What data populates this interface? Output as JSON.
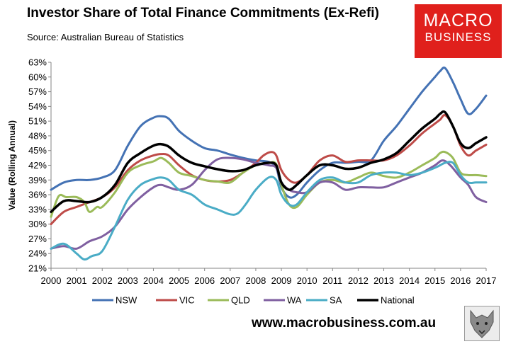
{
  "header": {
    "title": "Investor Share of Total Finance Commitments (Ex-Refi)",
    "source": "Source: Australian Bureau of Statistics"
  },
  "logo": {
    "line1": "MACRO",
    "line2": "BUSINESS"
  },
  "footer": {
    "website": "www.macrobusiness.com.au",
    "wolf_logo": "wolf-head-icon"
  },
  "chart_data": {
    "type": "line",
    "title": "Investor Share of Total Finance Commitments (Ex-Refi)",
    "xlabel": "",
    "ylabel": "Value (Rolling Annual)",
    "xlim": [
      2000,
      2017
    ],
    "ylim": [
      21,
      63
    ],
    "yticks": [
      21,
      24,
      27,
      30,
      33,
      36,
      39,
      42,
      45,
      48,
      51,
      54,
      57,
      60,
      63
    ],
    "ytick_labels": [
      "21%",
      "24%",
      "27%",
      "30%",
      "33%",
      "36%",
      "39%",
      "42%",
      "45%",
      "48%",
      "51%",
      "54%",
      "57%",
      "60%",
      "63%"
    ],
    "xticks": [
      2000,
      2001,
      2002,
      2003,
      2004,
      2005,
      2006,
      2007,
      2008,
      2009,
      2010,
      2011,
      2012,
      2013,
      2014,
      2015,
      2016,
      2017
    ],
    "xtick_labels": [
      "2000",
      "2001",
      "2002",
      "2003",
      "2004",
      "2005",
      "2006",
      "2007",
      "2008",
      "2009",
      "2010",
      "2011",
      "2012",
      "2013",
      "2014",
      "2015",
      "2016",
      "2017"
    ],
    "grid": false,
    "legend": "bottom",
    "series": [
      {
        "name": "NSW",
        "color": "#4472b4",
        "x": [
          2000,
          2000.5,
          2001,
          2001.5,
          2002,
          2002.5,
          2003,
          2003.5,
          2004,
          2004.3,
          2004.6,
          2005,
          2005.5,
          2006,
          2006.5,
          2007,
          2007.5,
          2008,
          2008.5,
          2008.8,
          2009,
          2009.3,
          2009.6,
          2010,
          2010.5,
          2011,
          2011.5,
          2012,
          2012.5,
          2013,
          2013.5,
          2014,
          2014.5,
          2015,
          2015.2,
          2015.4,
          2015.7,
          2016,
          2016.3,
          2016.6,
          2017
        ],
        "values": [
          37,
          38.5,
          39,
          39,
          39.5,
          41,
          46,
          50,
          51.7,
          52,
          51.5,
          49,
          47,
          45.5,
          45,
          44.2,
          43.5,
          43,
          42.7,
          41.5,
          37.5,
          35.5,
          36,
          38.5,
          41,
          42.5,
          42.5,
          42.7,
          43,
          47,
          50,
          53.5,
          57,
          60,
          61.2,
          61.8,
          59,
          55.5,
          52.5,
          53.5,
          56.2
        ]
      },
      {
        "name": "VIC",
        "color": "#be4b48",
        "x": [
          2000,
          2000.5,
          2001,
          2001.5,
          2002,
          2002.5,
          2003,
          2003.5,
          2004,
          2004.3,
          2004.6,
          2005,
          2005.5,
          2006,
          2006.5,
          2007,
          2007.5,
          2008,
          2008.3,
          2008.6,
          2008.8,
          2009,
          2009.3,
          2009.6,
          2010,
          2010.5,
          2011,
          2011.5,
          2012,
          2012.5,
          2013,
          2013.5,
          2014,
          2014.5,
          2015,
          2015.2,
          2015.4,
          2015.7,
          2016,
          2016.3,
          2016.6,
          2017
        ],
        "values": [
          30,
          32.5,
          33.5,
          34.5,
          35.5,
          37.5,
          41,
          43,
          44,
          44.3,
          44,
          42,
          40,
          39,
          38.7,
          39,
          40.5,
          42.5,
          44,
          44.7,
          44,
          41,
          39,
          38.5,
          40,
          43,
          44,
          42.7,
          43,
          43,
          43,
          44,
          46,
          48.5,
          50.5,
          51.3,
          52.2,
          50,
          46,
          44,
          45,
          46.2
        ]
      },
      {
        "name": "QLD",
        "color": "#9bbb59",
        "x": [
          2000,
          2000.3,
          2000.6,
          2001,
          2001.3,
          2001.5,
          2001.8,
          2002,
          2002.5,
          2003,
          2003.5,
          2004,
          2004.3,
          2004.6,
          2005,
          2005.5,
          2006,
          2006.5,
          2007,
          2007.5,
          2008,
          2008.5,
          2008.8,
          2009,
          2009.3,
          2009.6,
          2010,
          2010.5,
          2011,
          2011.5,
          2012,
          2012.5,
          2013,
          2013.5,
          2014,
          2014.5,
          2015,
          2015.2,
          2015.4,
          2015.7,
          2016,
          2016.3,
          2016.6,
          2017
        ],
        "values": [
          31.5,
          35.7,
          35.5,
          35.5,
          34.5,
          32.5,
          33.5,
          33.5,
          36.5,
          40.5,
          42,
          42.8,
          43.5,
          42.5,
          40.5,
          39.8,
          39,
          38.7,
          38.5,
          40.5,
          42,
          42.5,
          42.2,
          38,
          34,
          33.5,
          36,
          38.5,
          39,
          38.5,
          39.5,
          40.5,
          39.8,
          39.5,
          40.5,
          42,
          43.5,
          44.5,
          44.7,
          43.5,
          40.5,
          40,
          40,
          39.8
        ]
      },
      {
        "name": "WA",
        "color": "#7f5fa0",
        "x": [
          2000,
          2000.5,
          2001,
          2001.5,
          2002,
          2002.5,
          2003,
          2003.5,
          2004,
          2004.3,
          2004.6,
          2005,
          2005.5,
          2006,
          2006.5,
          2007,
          2007.5,
          2008,
          2008.5,
          2008.8,
          2009,
          2009.3,
          2009.6,
          2010,
          2010.5,
          2011,
          2011.5,
          2012,
          2012.5,
          2013,
          2013.5,
          2014,
          2014.5,
          2015,
          2015.3,
          2015.6,
          2016,
          2016.3,
          2016.6,
          2017
        ],
        "values": [
          25,
          25.5,
          25,
          26.5,
          27.5,
          29.5,
          33,
          35.5,
          37.5,
          38,
          37.5,
          37,
          38,
          41,
          43.2,
          43.5,
          43.2,
          42.5,
          42,
          41.5,
          38.5,
          37,
          36.5,
          36.5,
          38.5,
          38.5,
          37,
          37.5,
          37.5,
          37.5,
          38.5,
          39.5,
          40.5,
          42,
          43,
          42,
          39.5,
          38,
          35.5,
          34.5
        ]
      },
      {
        "name": "SA",
        "color": "#4aacc6",
        "x": [
          2000,
          2000.5,
          2001,
          2001.3,
          2001.6,
          2002,
          2002.5,
          2003,
          2003.5,
          2004,
          2004.3,
          2004.6,
          2005,
          2005.5,
          2006,
          2006.5,
          2007,
          2007.3,
          2007.6,
          2008,
          2008.5,
          2008.8,
          2009,
          2009.3,
          2009.6,
          2010,
          2010.5,
          2011,
          2011.5,
          2012,
          2012.5,
          2013,
          2013.5,
          2014,
          2014.5,
          2015,
          2015.2,
          2015.4,
          2015.7,
          2016,
          2016.3,
          2016.6,
          2017
        ],
        "values": [
          25,
          26,
          24,
          22.8,
          23.5,
          24.5,
          29.5,
          35,
          38,
          39.2,
          39.5,
          39,
          37,
          36,
          34,
          33,
          32,
          32.2,
          34,
          37,
          39.5,
          39,
          36,
          34,
          34,
          36.5,
          39,
          39.5,
          38.5,
          38.5,
          40,
          40.5,
          40.5,
          40,
          40.5,
          41.5,
          42,
          42.5,
          42.5,
          40,
          38.5,
          38.5,
          38.5
        ]
      },
      {
        "name": "National",
        "color": "#000000",
        "x": [
          2000,
          2000.5,
          2001,
          2001.5,
          2002,
          2002.5,
          2003,
          2003.5,
          2004,
          2004.3,
          2004.6,
          2005,
          2005.5,
          2006,
          2006.5,
          2007,
          2007.5,
          2008,
          2008.5,
          2008.8,
          2009,
          2009.3,
          2009.6,
          2010,
          2010.5,
          2011,
          2011.5,
          2012,
          2012.5,
          2013,
          2013.5,
          2014,
          2014.5,
          2015,
          2015.2,
          2015.4,
          2015.7,
          2016,
          2016.3,
          2016.6,
          2017
        ],
        "values": [
          32.5,
          34.7,
          34.7,
          34.5,
          35.5,
          38,
          42.5,
          44.5,
          46,
          46.3,
          45.8,
          44,
          42.5,
          41.8,
          41.2,
          40.8,
          41,
          42,
          42.5,
          42,
          38.5,
          37,
          38,
          40,
          42,
          42,
          41.3,
          41.5,
          42.5,
          43.2,
          44.5,
          47,
          49.5,
          51.5,
          52.5,
          52.8,
          50,
          46.5,
          45.5,
          46.5,
          47.7
        ]
      }
    ]
  }
}
